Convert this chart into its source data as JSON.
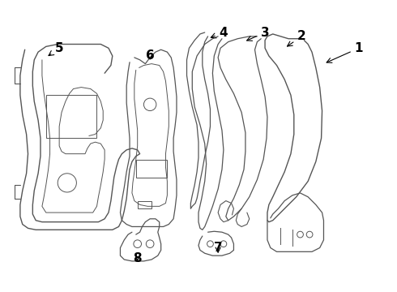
{
  "background_color": "#ffffff",
  "line_color": "#555555",
  "fig_width": 4.9,
  "fig_height": 3.6,
  "dpi": 100
}
